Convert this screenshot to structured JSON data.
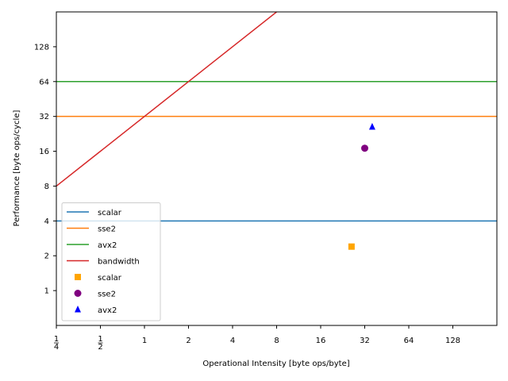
{
  "chart_data": {
    "type": "line",
    "title": "",
    "xlabel": "Operational Intensity [byte ops/byte]",
    "ylabel": "Performance [byte ops/cycle]",
    "x_scale": "log2",
    "y_scale": "log2",
    "xlim": [
      0.25,
      256
    ],
    "ylim": [
      0.5,
      256
    ],
    "x_ticks": [
      {
        "value": 0.25,
        "num": "1",
        "den": "4"
      },
      {
        "value": 0.5,
        "num": "1",
        "den": "2"
      },
      {
        "value": 1,
        "label": "1"
      },
      {
        "value": 2,
        "label": "2"
      },
      {
        "value": 4,
        "label": "4"
      },
      {
        "value": 8,
        "label": "8"
      },
      {
        "value": 16,
        "label": "16"
      },
      {
        "value": 32,
        "label": "32"
      },
      {
        "value": 64,
        "label": "64"
      },
      {
        "value": 128,
        "label": "128"
      }
    ],
    "y_ticks": [
      {
        "value": 1,
        "label": "1"
      },
      {
        "value": 2,
        "label": "2"
      },
      {
        "value": 4,
        "label": "4"
      },
      {
        "value": 8,
        "label": "8"
      },
      {
        "value": 16,
        "label": "16"
      },
      {
        "value": 32,
        "label": "32"
      },
      {
        "value": 64,
        "label": "64"
      },
      {
        "value": 128,
        "label": "128"
      }
    ],
    "grid": false,
    "legend_position": "lower-left",
    "lines": [
      {
        "name": "scalar",
        "color": "#1f77b4",
        "kind": "horizontal",
        "y": 4
      },
      {
        "name": "sse2",
        "color": "#ff7f0e",
        "kind": "horizontal",
        "y": 32
      },
      {
        "name": "avx2",
        "color": "#2ca02c",
        "kind": "horizontal",
        "y": 64
      },
      {
        "name": "bandwidth",
        "color": "#d62728",
        "kind": "proportional",
        "slope": 32
      }
    ],
    "points": [
      {
        "name": "scalar",
        "color": "#ffa500",
        "marker": "square",
        "x": 26,
        "y": 2.4
      },
      {
        "name": "sse2",
        "color": "#800080",
        "marker": "circle",
        "x": 32,
        "y": 17
      },
      {
        "name": "avx2",
        "color": "#0000ff",
        "marker": "triangle",
        "x": 36,
        "y": 26
      }
    ]
  }
}
